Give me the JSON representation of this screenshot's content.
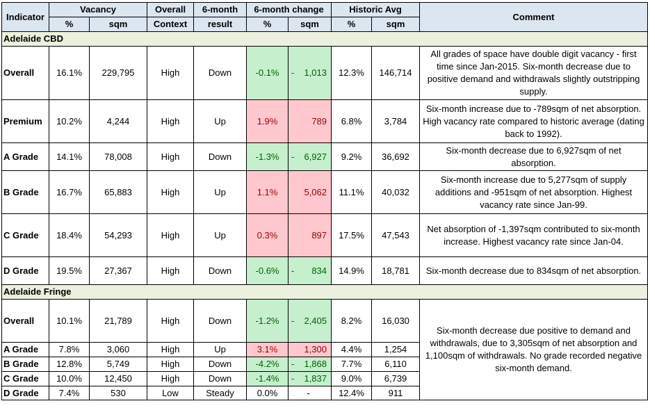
{
  "headers": {
    "indicator": "Indicator",
    "vacancy": "Vacancy",
    "overall_context_1": "Overall",
    "overall_context_2": "Context",
    "six_month_1": "6-month",
    "six_month_2": "result",
    "six_month_change": "6-month change",
    "historic_avg": "Historic Avg",
    "comment": "Comment",
    "pct": "%",
    "sqm": "sqm"
  },
  "sections": [
    {
      "title": "Adelaide CBD",
      "rows": [
        {
          "name": "Overall",
          "vac_pct": "16.1%",
          "vac_sqm": "229,795",
          "context": "High",
          "result": "Down",
          "chg_pct": "-0.1%",
          "chg_sign": "-",
          "chg_sqm": "1,013",
          "hist_pct": "12.3%",
          "hist_sqm": "146,714",
          "status": "green",
          "comment": "All grades of space have double digit vacancy - first time since Jan-2015. Six-month decrease due to positive demand and withdrawals slightly outstripping supply."
        },
        {
          "name": "Premium",
          "vac_pct": "10.2%",
          "vac_sqm": "4,244",
          "context": "High",
          "result": "Up",
          "chg_pct": "1.9%",
          "chg_sign": "",
          "chg_sqm": "789",
          "hist_pct": "6.8%",
          "hist_sqm": "3,784",
          "status": "red",
          "comment": "Six-month increase due to -789sqm of net absorption. High vacancy rate compared to historic average (dating back to 1992)."
        },
        {
          "name": "A Grade",
          "vac_pct": "14.1%",
          "vac_sqm": "78,008",
          "context": "High",
          "result": "Down",
          "chg_pct": "-1.3%",
          "chg_sign": "-",
          "chg_sqm": "6,927",
          "hist_pct": "9.2%",
          "hist_sqm": "36,692",
          "status": "green",
          "comment": "Six-month decrease due to 6,927sqm of net absorption."
        },
        {
          "name": "B Grade",
          "vac_pct": "16.7%",
          "vac_sqm": "65,883",
          "context": "High",
          "result": "Up",
          "chg_pct": "1.1%",
          "chg_sign": "",
          "chg_sqm": "5,062",
          "hist_pct": "11.1%",
          "hist_sqm": "40,032",
          "status": "red",
          "comment": "Six-month increase due to 5,277sqm of supply additions and -951sqm of net absorption. Highest vacancy rate since Jan-99."
        },
        {
          "name": "C Grade",
          "vac_pct": "18.4%",
          "vac_sqm": "54,293",
          "context": "High",
          "result": "Up",
          "chg_pct": "0.3%",
          "chg_sign": "",
          "chg_sqm": "897",
          "hist_pct": "17.5%",
          "hist_sqm": "47,543",
          "status": "red",
          "comment": "Net absorption of -1,397sqm contributed to six-month increase. Highest vacancy rate since Jan-04."
        },
        {
          "name": "D Grade",
          "vac_pct": "19.5%",
          "vac_sqm": "27,367",
          "context": "High",
          "result": "Down",
          "chg_pct": "-0.6%",
          "chg_sign": "-",
          "chg_sqm": "834",
          "hist_pct": "14.9%",
          "hist_sqm": "18,781",
          "status": "green",
          "comment": "Six-month decrease due to 834sqm of net absorption."
        }
      ]
    },
    {
      "title": "Adelaide Fringe",
      "comment": "Six-month decrease due positive to demand and withdrawals, due to 3,305sqm of net absorption and 1,100sqm of withdrawals. No grade recorded negative six-month demand.",
      "rows": [
        {
          "name": "Overall",
          "vac_pct": "10.1%",
          "vac_sqm": "21,789",
          "context": "High",
          "result": "Down",
          "chg_pct": "-1.2%",
          "chg_sign": "-",
          "chg_sqm": "2,405",
          "hist_pct": "8.2%",
          "hist_sqm": "16,030",
          "status": "green"
        },
        {
          "name": "A Grade",
          "vac_pct": "7.8%",
          "vac_sqm": "3,060",
          "context": "High",
          "result": "Up",
          "chg_pct": "3.1%",
          "chg_sign": "",
          "chg_sqm": "1,300",
          "hist_pct": "4.4%",
          "hist_sqm": "1,254",
          "status": "red"
        },
        {
          "name": "B Grade",
          "vac_pct": "12.8%",
          "vac_sqm": "5,749",
          "context": "High",
          "result": "Down",
          "chg_pct": "-4.2%",
          "chg_sign": "-",
          "chg_sqm": "1,868",
          "hist_pct": "7.7%",
          "hist_sqm": "6,110",
          "status": "green"
        },
        {
          "name": "C Grade",
          "vac_pct": "10.0%",
          "vac_sqm": "12,450",
          "context": "High",
          "result": "Down",
          "chg_pct": "-1.4%",
          "chg_sign": "-",
          "chg_sqm": "1,837",
          "hist_pct": "9.0%",
          "hist_sqm": "6,739",
          "status": "green"
        },
        {
          "name": "D Grade",
          "vac_pct": "7.4%",
          "vac_sqm": "530",
          "context": "Low",
          "result": "Steady",
          "chg_pct": "0.0%",
          "chg_sign": "",
          "chg_sqm": "-",
          "hist_pct": "12.4%",
          "hist_sqm": "911",
          "status": "none"
        }
      ]
    }
  ]
}
